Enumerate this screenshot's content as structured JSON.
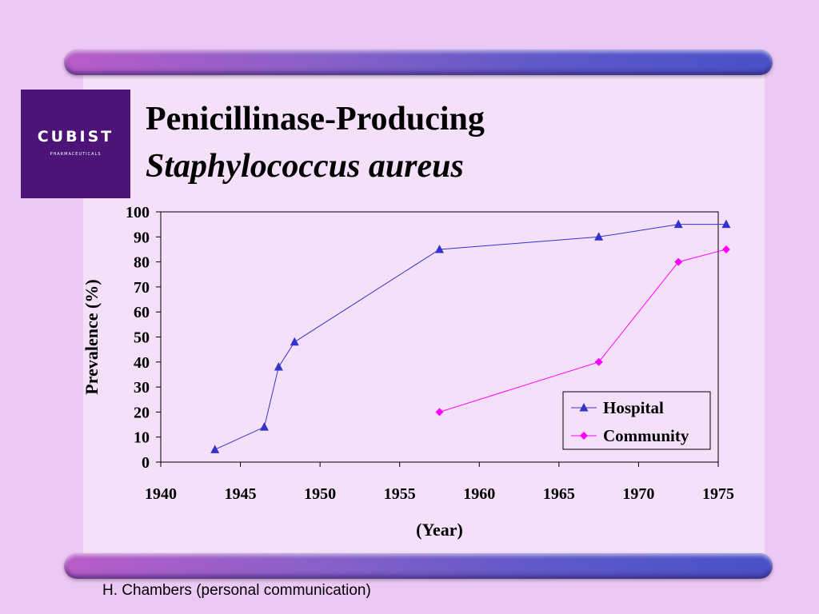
{
  "slide": {
    "title": "Penicillinase-Producing",
    "subtitle": "Staphylococcus aureus",
    "footnote": "H. Chambers (personal communication)"
  },
  "logo": {
    "name": "CUBIST",
    "tagline": "PHARMACEUTICALS"
  },
  "colors": {
    "hospital": "#3333cc",
    "community": "#ff00ff",
    "logo_bg": "#4d1478"
  },
  "chart_data": {
    "type": "line",
    "title": "",
    "xlabel": "(Year)",
    "ylabel": "Prevalence (%)",
    "xlim": [
      1940,
      1975
    ],
    "ylim": [
      0,
      100
    ],
    "xticks": [
      1940,
      1945,
      1950,
      1955,
      1960,
      1965,
      1970,
      1975
    ],
    "yticks": [
      0,
      10,
      20,
      30,
      40,
      50,
      60,
      70,
      80,
      90,
      100
    ],
    "grid": false,
    "legend_position": "bottom-right",
    "series": [
      {
        "name": "Hospital",
        "marker": "triangle",
        "color": "#3333cc",
        "points": [
          [
            1943.4,
            5
          ],
          [
            1946.5,
            14
          ],
          [
            1947.4,
            38
          ],
          [
            1948.4,
            48
          ],
          [
            1957.5,
            85
          ],
          [
            1967.5,
            90
          ],
          [
            1972.5,
            95
          ],
          [
            1975.5,
            95
          ]
        ]
      },
      {
        "name": "Community",
        "marker": "diamond",
        "color": "#ff00ff",
        "points": [
          [
            1957.5,
            20
          ],
          [
            1967.5,
            40
          ],
          [
            1972.5,
            80
          ],
          [
            1975.5,
            85
          ]
        ]
      }
    ]
  }
}
